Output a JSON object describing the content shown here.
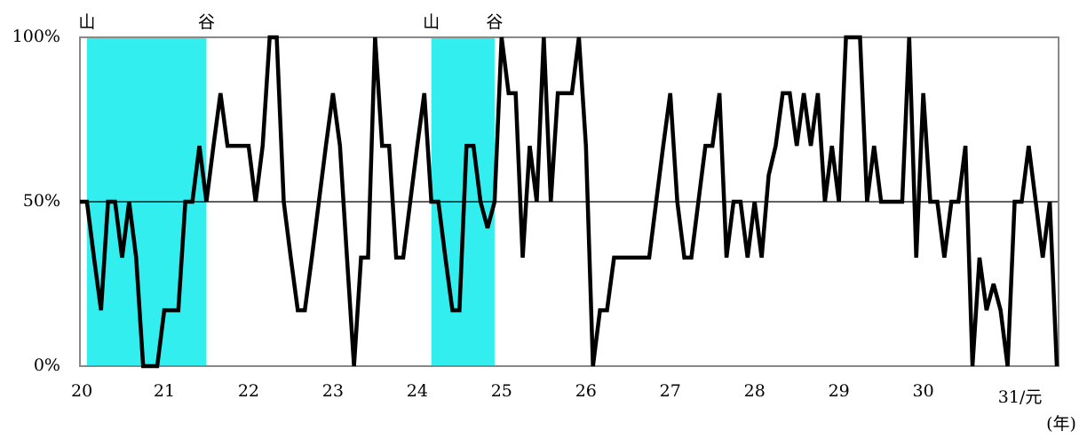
{
  "chart_data": {
    "type": "line",
    "categories": [
      "20",
      null,
      null,
      null,
      null,
      null,
      null,
      null,
      null,
      null,
      null,
      null,
      "21",
      null,
      null,
      null,
      null,
      null,
      null,
      null,
      null,
      null,
      null,
      null,
      "22",
      null,
      null,
      null,
      null,
      null,
      null,
      null,
      null,
      null,
      null,
      null,
      "23",
      null,
      null,
      null,
      null,
      null,
      null,
      null,
      null,
      null,
      null,
      null,
      "24",
      null,
      null,
      null,
      null,
      null,
      null,
      null,
      null,
      null,
      null,
      null,
      "25",
      null,
      null,
      null,
      null,
      null,
      null,
      null,
      null,
      null,
      null,
      null,
      "26",
      null,
      null,
      null,
      null,
      null,
      null,
      null,
      null,
      null,
      null,
      null,
      "27",
      null,
      null,
      null,
      null,
      null,
      null,
      null,
      null,
      null,
      null,
      null,
      "28",
      null,
      null,
      null,
      null,
      null,
      null,
      null,
      null,
      null,
      null,
      null,
      "29",
      null,
      null,
      null,
      null,
      null,
      null,
      null,
      null,
      null,
      null,
      null,
      "30",
      null,
      null,
      null,
      null,
      null,
      null,
      null,
      null,
      null,
      null,
      null,
      "31/元",
      null,
      null,
      null,
      null,
      null,
      null,
      null
    ],
    "values": [
      50,
      50,
      33,
      17,
      50,
      50,
      33,
      50,
      33,
      0,
      0,
      0,
      17,
      17,
      17,
      50,
      50,
      67,
      50,
      67,
      83,
      67,
      67,
      67,
      67,
      50,
      67,
      100,
      100,
      50,
      33,
      17,
      17,
      33,
      50,
      67,
      83,
      67,
      33,
      0,
      33,
      33,
      100,
      67,
      67,
      33,
      33,
      50,
      67,
      83,
      50,
      50,
      33,
      17,
      17,
      67,
      67,
      50,
      42,
      50,
      100,
      83,
      83,
      33,
      67,
      50,
      100,
      50,
      83,
      83,
      83,
      100,
      67,
      0,
      17,
      17,
      33,
      33,
      33,
      33,
      33,
      33,
      50,
      67,
      83,
      50,
      33,
      33,
      50,
      67,
      67,
      83,
      33,
      50,
      50,
      33,
      50,
      33,
      58,
      67,
      83,
      83,
      67,
      83,
      67,
      83,
      50,
      67,
      50,
      100,
      100,
      100,
      50,
      67,
      50,
      50,
      50,
      50,
      100,
      33,
      83,
      50,
      50,
      33,
      50,
      50,
      67,
      0,
      33,
      17,
      25,
      17,
      0,
      50,
      50,
      67,
      50,
      33,
      50,
      0
    ],
    "color": "#000000",
    "ylim": [
      0,
      100
    ],
    "yticks": [
      {
        "value": 0,
        "label": "0%"
      },
      {
        "value": 50,
        "label": "50%"
      },
      {
        "value": 100,
        "label": "100%"
      }
    ],
    "x_unit_label": "(年)",
    "shaded_periods": [
      {
        "start": 1,
        "end": 18,
        "start_label": "山",
        "end_label": "谷",
        "color": "#33eeee"
      },
      {
        "start": 50,
        "end": 59,
        "start_label": "山",
        "end_label": "谷",
        "color": "#33eeee"
      }
    ]
  }
}
